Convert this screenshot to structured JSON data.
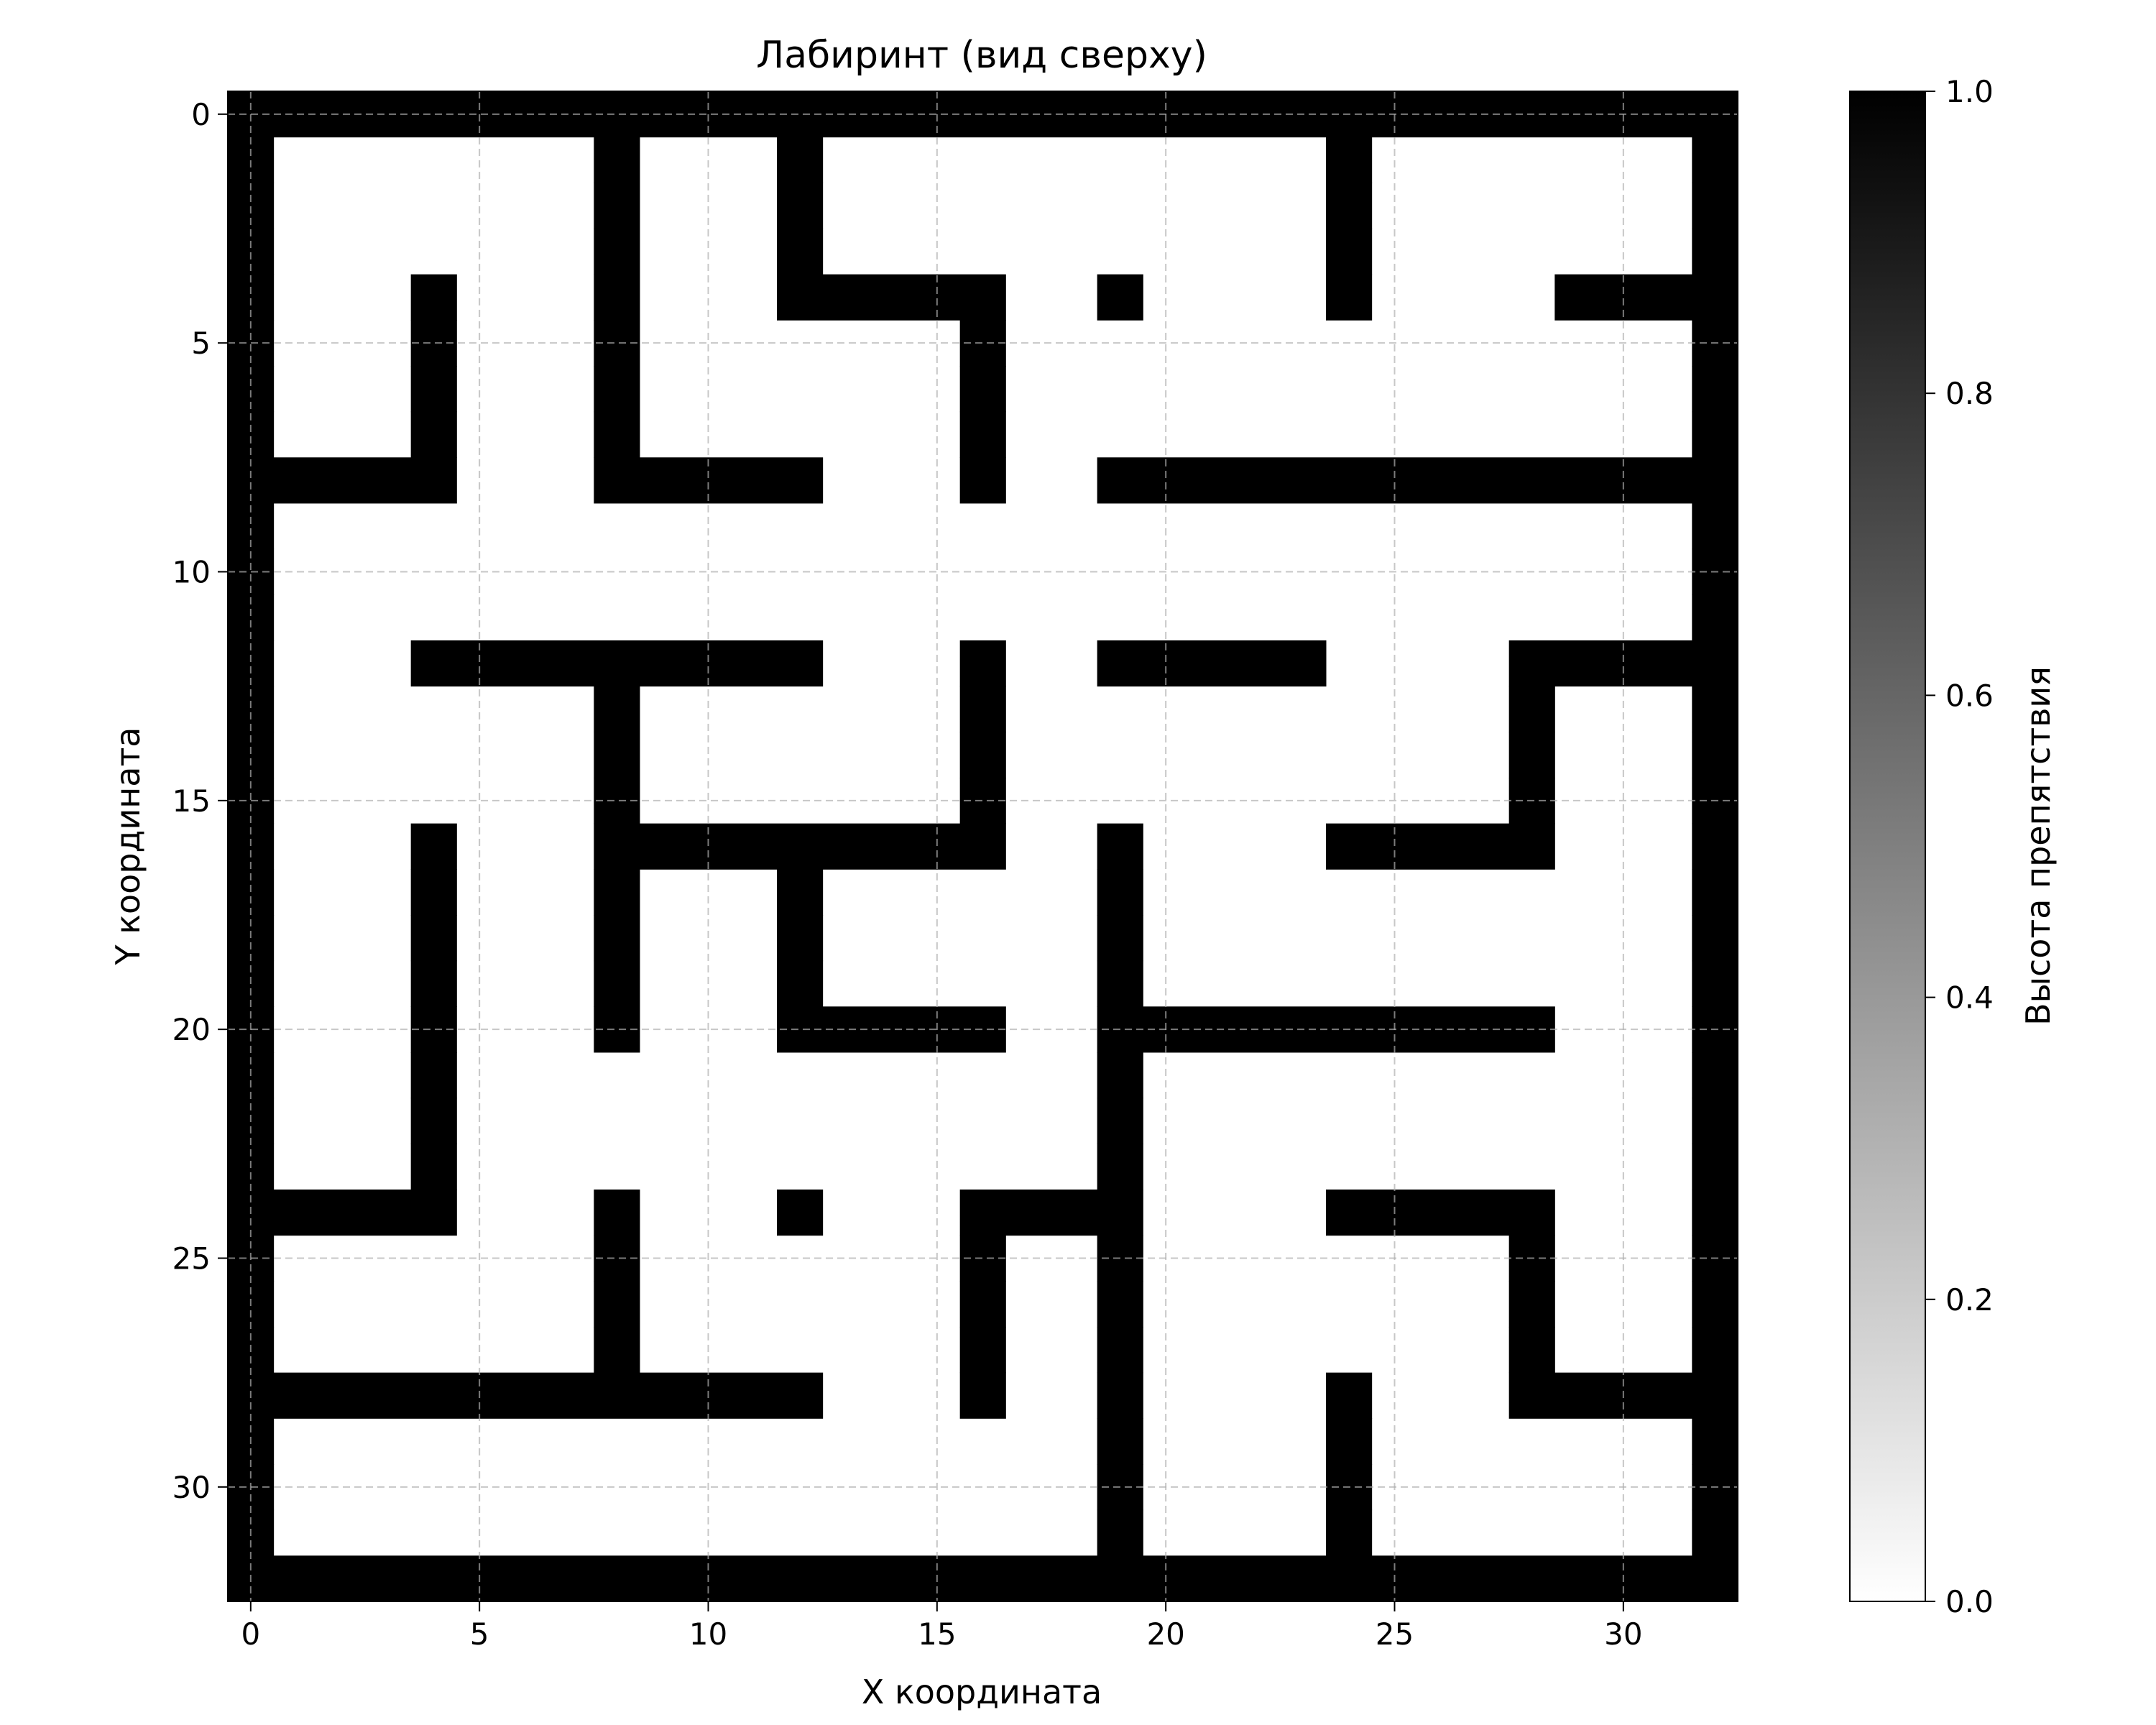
{
  "chart_data": {
    "type": "heatmap",
    "title": "Лабиринт (вид сверху)",
    "xlabel": "X координата",
    "ylabel": "Y координата",
    "xlim": [
      -0.5,
      32.5
    ],
    "ylim": [
      32.5,
      -0.5
    ],
    "x_ticks": [
      0,
      5,
      10,
      15,
      20,
      25,
      30
    ],
    "y_ticks": [
      0,
      5,
      10,
      15,
      20,
      25,
      30
    ],
    "grid": true,
    "colormap": "gray_r",
    "colorbar": {
      "label": "Высота препятствия",
      "min": 0.0,
      "max": 1.0,
      "ticks": [
        "0.0",
        "0.2",
        "0.4",
        "0.6",
        "0.8",
        "1.0"
      ]
    },
    "colors": {
      "obstacle": "#000000",
      "free": "#ffffff"
    },
    "rows": [
      "111111111111111111111111111111111",
      "100000001000100000000000100000001",
      "100000001000100000000000100000001",
      "100000001000100000000000100000001",
      "100010001000111110010000100001111",
      "100010001000000010000000000000001",
      "100010001000000010000000000000001",
      "100010001000000010000000000000001",
      "111110001111100010011111111111111",
      "100000000000000000000000000000001",
      "100000000000000000000000000000001",
      "100000000000000000000000000000001",
      "100011111111100010011111000011111",
      "100000001000000010000000000010001",
      "100000001000000010000000000010001",
      "100000001000000010000000000010001",
      "100010001111111110010000111110001",
      "100010001000100000010000000000001",
      "100010001000100000010000000000001",
      "100010001000100000010000000000001",
      "100010001000111110011111111110001",
      "100010000000000000010000000000001",
      "100010000000000000010000000000001",
      "100010000000000000010000000000001",
      "111110001000100011110000111110001",
      "100000001000000010010000000010001",
      "100000001000000010010000000010001",
      "100000001000000010010000000010001",
      "111111111111100010010000100011111",
      "100000000000000000010000100000001",
      "100000000000000000010000100000001",
      "100000000000000000010000100000001",
      "111111111111111111111111111111111"
    ]
  }
}
